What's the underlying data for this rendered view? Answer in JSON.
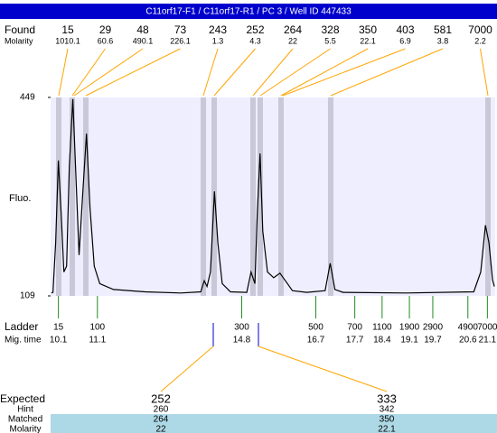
{
  "title": "C11orf17-F1 / C11orf17-R1 / PC 3 / Well ID 447433",
  "found": {
    "label": "Found",
    "sizes": [
      15,
      29,
      48,
      73,
      243,
      252,
      264,
      328,
      350,
      403,
      581,
      7000
    ],
    "molarity_label": "Molarity",
    "molarity": [
      1010.1,
      60.6,
      490.1,
      226.1,
      1.3,
      4.3,
      22,
      5.5,
      22.1,
      6.9,
      3.8,
      2.2
    ]
  },
  "chart_data": {
    "type": "line",
    "y_label": "Fluo.",
    "color": "#000000",
    "ylim": [
      109,
      449
    ],
    "yticks": [
      109,
      449
    ],
    "xlim": [
      9.9,
      21.3
    ],
    "x": [
      9.92,
      9.96,
      10.03,
      10.1,
      10.17,
      10.24,
      10.31,
      10.38,
      10.47,
      10.54,
      10.63,
      10.72,
      10.82,
      10.91,
      11.02,
      11.16,
      11.51,
      12.32,
      13.24,
      13.75,
      13.84,
      13.91,
      14.0,
      14.1,
      14.19,
      14.3,
      14.51,
      14.93,
      15.04,
      15.14,
      15.2,
      15.27,
      15.34,
      15.46,
      15.62,
      15.78,
      15.92,
      16.1,
      16.47,
      16.94,
      17.07,
      17.19,
      17.4,
      19.01,
      20.75,
      20.93,
      21.05,
      21.14,
      21.23,
      21.28
    ],
    "values": [
      114,
      115,
      200,
      341,
      250,
      150,
      160,
      330,
      446,
      330,
      179,
      280,
      387,
      260,
      160,
      130,
      120,
      116,
      114,
      116,
      135,
      125,
      150,
      288,
      200,
      130,
      116,
      115,
      150,
      130,
      250,
      353,
      220,
      150,
      140,
      148,
      135,
      118,
      115,
      118,
      165,
      120,
      115,
      114,
      116,
      150,
      230,
      200,
      137,
      125
    ]
  },
  "ladder": {
    "label": "Ladder",
    "time_label": "Mig. time",
    "sizes": [
      15,
      100,
      300,
      500,
      700,
      1100,
      1900,
      2900,
      4900,
      7000
    ],
    "mig_times": [
      10.1,
      11.1,
      14.8,
      16.7,
      17.7,
      18.4,
      19.1,
      19.7,
      20.6,
      21.1
    ]
  },
  "expected": {
    "labels": [
      "Expected",
      "Hint",
      "Matched",
      "Molarity"
    ],
    "columns": [
      [
        252,
        260,
        264,
        22
      ],
      [
        333,
        342,
        350,
        22.1
      ]
    ]
  }
}
